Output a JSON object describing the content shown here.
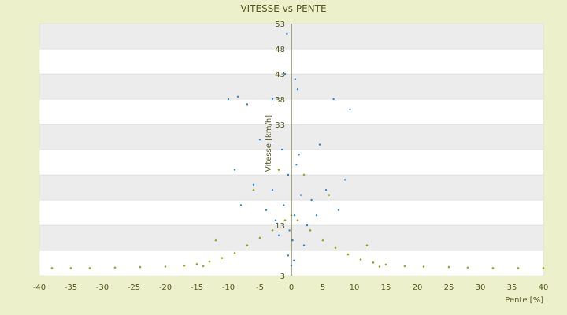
{
  "chart_data": {
    "type": "scatter",
    "title": "VITESSE vs PENTE",
    "xlabel": "Pente [%]",
    "ylabel": "Vitesse [km/h]",
    "xlim": [
      -40,
      40
    ],
    "ylim": [
      3,
      53
    ],
    "x_ticks": [
      -40,
      -35,
      -30,
      -25,
      -20,
      -15,
      -10,
      -5,
      0,
      5,
      10,
      15,
      20,
      25,
      30,
      35,
      40
    ],
    "y_ticks": [
      3,
      8,
      13,
      18,
      23,
      28,
      33,
      38,
      43,
      48,
      53
    ],
    "y_tick_labels": [
      "3",
      "",
      "13",
      "",
      "",
      "",
      "33",
      "38",
      "43",
      "48",
      "53"
    ],
    "grid": "horizontal bands, alternating white and light gray",
    "series": [
      {
        "color": "#2f86cc",
        "marker": "dot",
        "points": [
          [
            -1.2,
            17
          ],
          [
            0.5,
            15
          ],
          [
            1.5,
            19
          ],
          [
            -2.5,
            14
          ],
          [
            2.5,
            13
          ],
          [
            -0.5,
            23
          ],
          [
            0.8,
            25
          ],
          [
            -3,
            20
          ],
          [
            3.2,
            18
          ],
          [
            -4,
            16
          ],
          [
            4,
            15
          ],
          [
            -1.5,
            28
          ],
          [
            1.2,
            27
          ],
          [
            -6,
            21
          ],
          [
            5.5,
            20
          ],
          [
            -0.3,
            12
          ],
          [
            0.2,
            10
          ],
          [
            -2,
            11
          ],
          [
            2,
            9
          ],
          [
            -8,
            17
          ],
          [
            7.5,
            16
          ],
          [
            -10,
            38
          ],
          [
            -8.5,
            38.5
          ],
          [
            -7,
            37
          ],
          [
            -3,
            38
          ],
          [
            1,
            40
          ],
          [
            -1,
            43
          ],
          [
            0.6,
            42
          ],
          [
            6.7,
            38
          ],
          [
            9.3,
            36
          ],
          [
            -0.7,
            51
          ],
          [
            -9,
            24
          ],
          [
            8.5,
            22
          ],
          [
            -5,
            30
          ],
          [
            4.5,
            29
          ],
          [
            0,
            5
          ],
          [
            -0.5,
            7
          ],
          [
            0.4,
            6
          ]
        ]
      },
      {
        "color": "#9c9c1c",
        "marker": "diamond",
        "points": [
          [
            -38,
            4.5
          ],
          [
            -35,
            4.5
          ],
          [
            -32,
            4.5
          ],
          [
            -28,
            4.6
          ],
          [
            -24,
            4.7
          ],
          [
            -20,
            4.8
          ],
          [
            -17,
            5
          ],
          [
            -15,
            5.3
          ],
          [
            -13,
            5.8
          ],
          [
            -11,
            6.5
          ],
          [
            -9,
            7.5
          ],
          [
            -7,
            9
          ],
          [
            -5,
            10.5
          ],
          [
            -3,
            12
          ],
          [
            -1,
            14
          ],
          [
            0,
            15
          ],
          [
            1,
            14
          ],
          [
            3,
            12
          ],
          [
            5,
            10
          ],
          [
            7,
            8.5
          ],
          [
            9,
            7.2
          ],
          [
            11,
            6.2
          ],
          [
            13,
            5.6
          ],
          [
            15,
            5.2
          ],
          [
            18,
            4.9
          ],
          [
            21,
            4.8
          ],
          [
            25,
            4.7
          ],
          [
            28,
            4.6
          ],
          [
            32,
            4.5
          ],
          [
            36,
            4.5
          ],
          [
            40,
            4.5
          ],
          [
            -12,
            10
          ],
          [
            12,
            9
          ],
          [
            -6,
            20
          ],
          [
            6,
            19
          ],
          [
            -2,
            24
          ],
          [
            2,
            23
          ],
          [
            -14,
            4.9
          ],
          [
            14,
            4.8
          ]
        ]
      }
    ]
  }
}
